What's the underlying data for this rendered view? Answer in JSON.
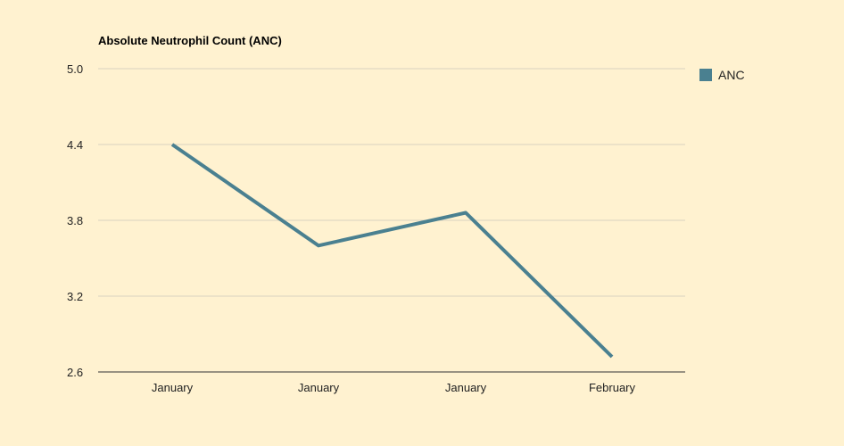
{
  "chart_data": {
    "type": "line",
    "title": "Absolute Neutrophil Count (ANC)",
    "categories": [
      "January",
      "January",
      "January",
      "February"
    ],
    "series": [
      {
        "name": "ANC",
        "values": [
          4.4,
          3.6,
          3.86,
          2.72
        ],
        "color": "#4a8090"
      }
    ],
    "ylim": [
      2.6,
      5.0
    ],
    "yticks": [
      "2.6",
      "3.2",
      "3.8",
      "4.4",
      "5.0"
    ],
    "grid": true,
    "legend": "right"
  }
}
